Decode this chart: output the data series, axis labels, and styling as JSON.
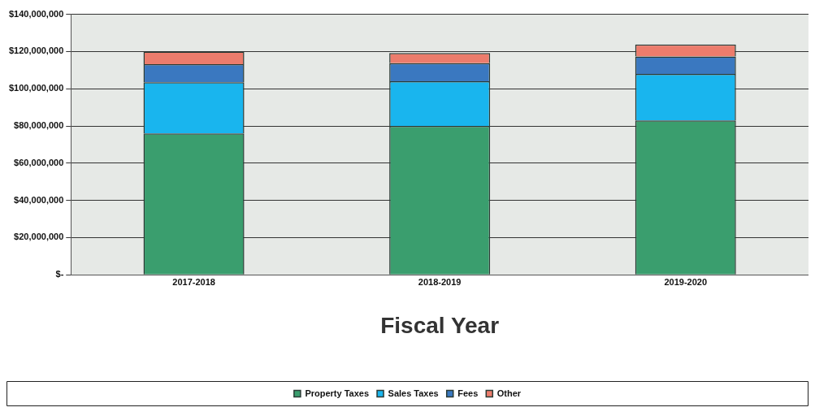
{
  "chart_data": {
    "type": "bar",
    "stacked": true,
    "xlabel": "Fiscal Year",
    "categories": [
      "2017-2018",
      "2018-2019",
      "2019-2020"
    ],
    "series": [
      {
        "name": "Property Taxes",
        "color": "#3a9e6e",
        "values": [
          76000000,
          80000000,
          83000000
        ]
      },
      {
        "name": "Sales Taxes",
        "color": "#19b5ee",
        "values": [
          27500000,
          24000000,
          25000000
        ]
      },
      {
        "name": "Fees",
        "color": "#3a78c0",
        "values": [
          9700000,
          9700000,
          9300000
        ]
      },
      {
        "name": "Other",
        "color": "#ec7c6c",
        "values": [
          6800000,
          5500000,
          6500000
        ]
      }
    ],
    "ylim": [
      0,
      140000000
    ],
    "yticks": [
      {
        "value": 0,
        "label": "$-"
      },
      {
        "value": 20000000,
        "label": "$20,000,000"
      },
      {
        "value": 40000000,
        "label": "$40,000,000"
      },
      {
        "value": 60000000,
        "label": "$60,000,000"
      },
      {
        "value": 80000000,
        "label": "$80,000,000"
      },
      {
        "value": 100000000,
        "label": "$100,000,000"
      },
      {
        "value": 120000000,
        "label": "$120,000,000"
      },
      {
        "value": 140000000,
        "label": "$140,000,000"
      }
    ],
    "grid": "y",
    "legend": "bottom"
  }
}
